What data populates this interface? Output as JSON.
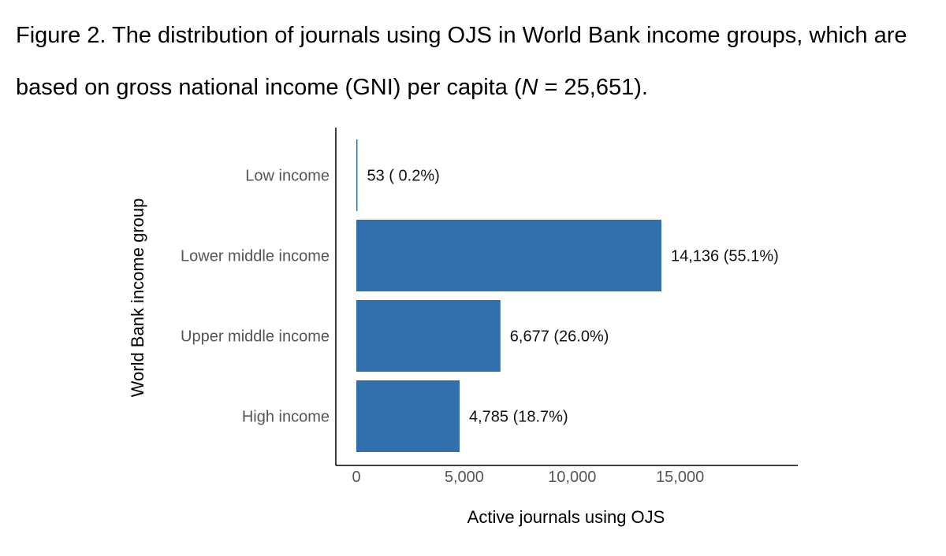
{
  "caption": {
    "line1": "Figure 2. The distribution of journals using OJS in World Bank income groups, which are",
    "line2_before": "based on gross national income (GNI) per capita (",
    "line2_italic": "N",
    "line2_after": " = 25,651)."
  },
  "chart_data": {
    "type": "bar",
    "orientation": "horizontal",
    "title": "",
    "xlabel": "Active journals using OJS",
    "ylabel": "World Bank income group",
    "categories": [
      "Low income",
      "Lower middle income",
      "Upper middle income",
      "High income"
    ],
    "values": [
      53,
      14136,
      6677,
      4785
    ],
    "data_labels": [
      "53 ( 0.2%)",
      "14,136 (55.1%)",
      "6,677 (26.0%)",
      "4,785 (18.7%)"
    ],
    "xlim": [
      0,
      20000
    ],
    "xticks": [
      0,
      5000,
      10000,
      15000
    ],
    "xtick_labels": [
      "0",
      "5,000",
      "10,000",
      "15,000"
    ],
    "grid": false,
    "legend": "none",
    "bar_color": "#3070ad"
  }
}
